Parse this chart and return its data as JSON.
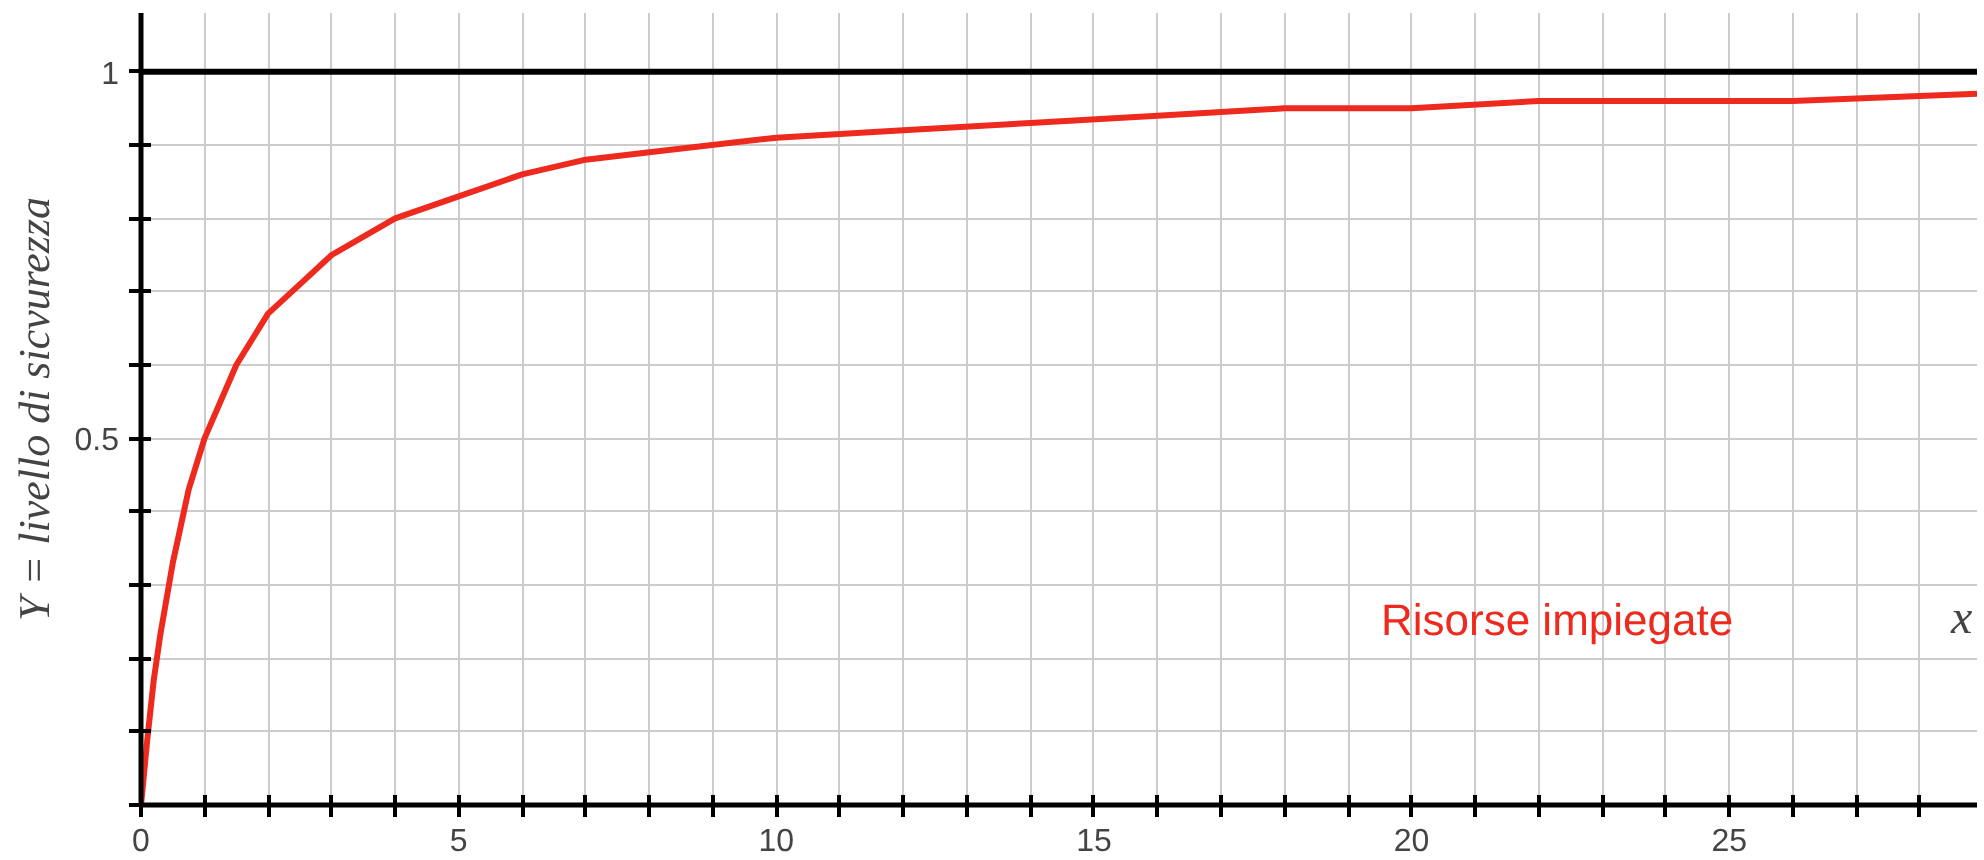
{
  "chart_data": {
    "type": "line",
    "xlabel": "Risorse impiegate",
    "ylabel": "Y = livello di sicvurezza",
    "annotations": [
      "x"
    ],
    "x": [
      0,
      0.1,
      0.2,
      0.3,
      0.5,
      0.75,
      1,
      1.5,
      2,
      2.5,
      3,
      4,
      5,
      6,
      7,
      8,
      10,
      12,
      14,
      16,
      18,
      20,
      22,
      24,
      26,
      28.9
    ],
    "series": [
      {
        "color": "#ee2a1e",
        "values": [
          0,
          0.09,
          0.17,
          0.23,
          0.33,
          0.43,
          0.5,
          0.6,
          0.67,
          0.71,
          0.75,
          0.8,
          0.83,
          0.86,
          0.88,
          0.89,
          0.91,
          0.92,
          0.93,
          0.94,
          0.95,
          0.95,
          0.96,
          0.96,
          0.96,
          0.97
        ]
      }
    ],
    "xlim": [
      0,
      28.9
    ],
    "ylim": [
      0,
      1.08
    ],
    "xticks": [
      0,
      {
        "value": 1,
        "label": null
      },
      {
        "value": 2,
        "label": null
      },
      {
        "value": 3,
        "label": null
      },
      {
        "value": 4,
        "label": null
      },
      5,
      {
        "value": 6,
        "label": null
      },
      {
        "value": 7,
        "label": null
      },
      {
        "value": 8,
        "label": null
      },
      {
        "value": 9,
        "label": null
      },
      10,
      {
        "value": 11,
        "label": null
      },
      {
        "value": 12,
        "label": null
      },
      {
        "value": 13,
        "label": null
      },
      {
        "value": 14,
        "label": null
      },
      15,
      {
        "value": 16,
        "label": null
      },
      {
        "value": 17,
        "label": null
      },
      {
        "value": 18,
        "label": null
      },
      {
        "value": 19,
        "label": null
      },
      20,
      {
        "value": 21,
        "label": null
      },
      {
        "value": 22,
        "label": null
      },
      {
        "value": 23,
        "label": null
      },
      {
        "value": 24,
        "label": null
      },
      25,
      {
        "value": 26,
        "label": null
      },
      {
        "value": 27,
        "label": null
      },
      {
        "value": 28,
        "label": null
      }
    ],
    "yticks": [
      {
        "value": 0,
        "label": null
      },
      {
        "value": 0.1,
        "label": null
      },
      {
        "value": 0.2,
        "label": null
      },
      {
        "value": 0.3,
        "label": null
      },
      {
        "value": 0.4,
        "label": null
      },
      0.5,
      {
        "value": 0.6,
        "label": null
      },
      {
        "value": 0.7,
        "label": null
      },
      {
        "value": 0.8,
        "label": null
      },
      {
        "value": 0.9,
        "label": null
      },
      1
    ],
    "ref_lines": [
      {
        "axis": "y",
        "value": 1,
        "color": "#000000"
      }
    ],
    "grid": true,
    "line_style": "solid"
  }
}
